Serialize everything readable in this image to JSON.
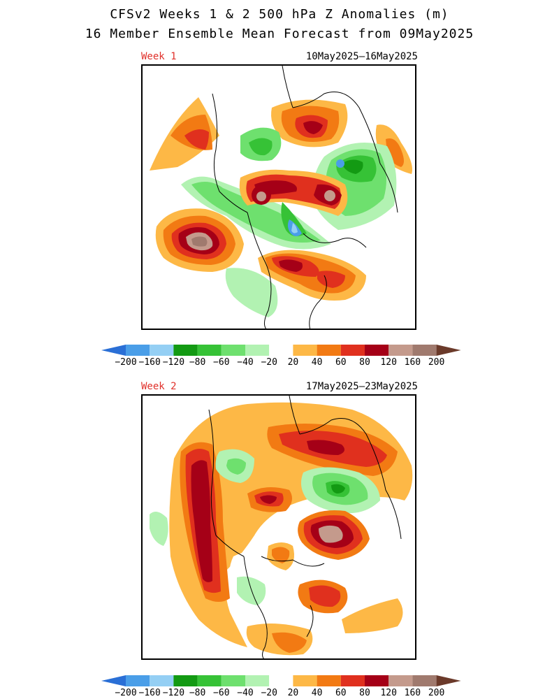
{
  "header": {
    "title_line1": "CFSv2 Weeks 1 & 2 500 hPa Z Anomalies (m)",
    "title_line2": "16 Member Ensemble Mean Forecast from 09May2025"
  },
  "panels": [
    {
      "week_label": "Week 1",
      "date_range": "10May2025–16May2025"
    },
    {
      "week_label": "Week 2",
      "date_range": "17May2025–23May2025"
    }
  ],
  "colorbar": {
    "levels": [
      "-200",
      "-160",
      "-120",
      "-80",
      "-60",
      "-40",
      "-20",
      "20",
      "40",
      "60",
      "80",
      "120",
      "160",
      "200"
    ],
    "colors": [
      "#2a6fd6",
      "#4a9ee8",
      "#94cff4",
      "#139a13",
      "#36c236",
      "#6ee06e",
      "#b2f2b2",
      "#ffffff",
      "#fdb846",
      "#f27a13",
      "#e0301e",
      "#a50017",
      "#c49a8c",
      "#a07a6e",
      "#6b3a2a"
    ],
    "units": "m"
  },
  "colors": {
    "week_label": "#e0302a",
    "coastline": "#000000"
  }
}
